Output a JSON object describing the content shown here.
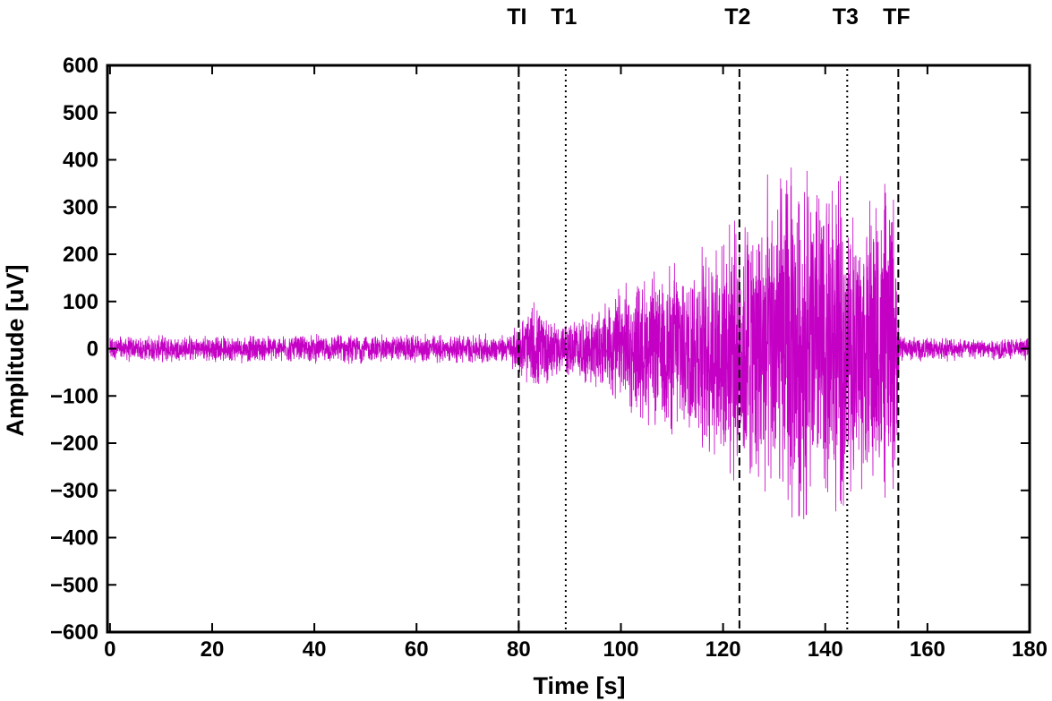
{
  "chart_data": {
    "type": "line",
    "title": "",
    "xlabel": "Time [s]",
    "ylabel": "Amplitude [uV]",
    "xlim": [
      -0.5,
      180
    ],
    "ylim": [
      -600,
      600
    ],
    "xticks": [
      0,
      20,
      40,
      60,
      80,
      100,
      120,
      140,
      160,
      180
    ],
    "yticks": [
      -600,
      -500,
      -400,
      -300,
      -200,
      -100,
      0,
      100,
      200,
      300,
      400,
      500,
      600
    ],
    "grid": false,
    "series_color": "#c400c4",
    "envelope": {
      "description_points_time": [
        0,
        78,
        80,
        83,
        86,
        89,
        95,
        100,
        105,
        110,
        115,
        120,
        123,
        126,
        130,
        133,
        136,
        140,
        143,
        146,
        150,
        153.5,
        154.5,
        180
      ],
      "peak_amplitude": [
        30,
        35,
        60,
        110,
        80,
        60,
        90,
        140,
        170,
        200,
        230,
        260,
        320,
        340,
        400,
        420,
        420,
        400,
        370,
        340,
        350,
        380,
        30,
        25
      ]
    },
    "markers": [
      {
        "label": "TI",
        "x": 80,
        "style": "dashed"
      },
      {
        "label": "T1",
        "x": 89.2,
        "style": "dotted"
      },
      {
        "label": "T2",
        "x": 123.2,
        "style": "dashed"
      },
      {
        "label": "T3",
        "x": 144.3,
        "style": "dotted"
      },
      {
        "label": "TF",
        "x": 154.3,
        "style": "dashed"
      }
    ]
  }
}
